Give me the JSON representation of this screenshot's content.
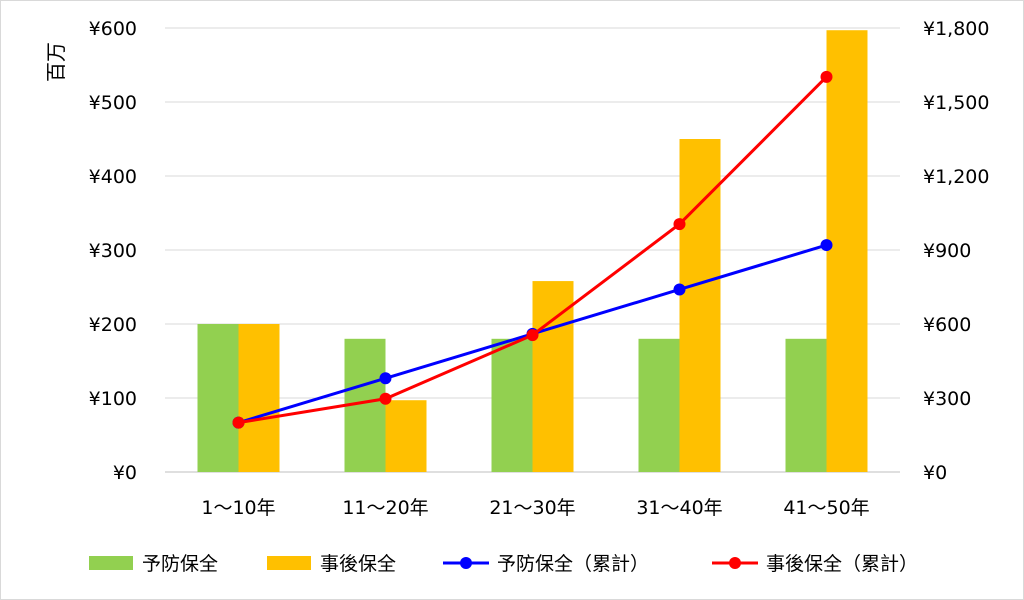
{
  "chart_data": {
    "type": "bar",
    "title": "",
    "y_unit_label": "百万",
    "categories": [
      "1～10年",
      "11～20年",
      "21～30年",
      "31～40年",
      "41～50年"
    ],
    "left_axis": {
      "range": [
        0,
        600
      ],
      "ticks": [
        "¥0",
        "¥100",
        "¥200",
        "¥300",
        "¥400",
        "¥500",
        "¥600"
      ]
    },
    "right_axis": {
      "range": [
        0,
        1800
      ],
      "ticks": [
        "¥0",
        "¥300",
        "¥600",
        "¥900",
        "¥1,200",
        "¥1,500",
        "¥1,800"
      ]
    },
    "grid": true,
    "legend_position": "bottom",
    "bar_series": [
      {
        "name": "予防保全",
        "color": "#92d050",
        "axis": "left",
        "values": [
          200,
          180,
          180,
          180,
          180
        ]
      },
      {
        "name": "事後保全",
        "color": "#ffc000",
        "axis": "left",
        "values": [
          200,
          97,
          258,
          450,
          597
        ]
      }
    ],
    "line_series": [
      {
        "name": "予防保全（累計）",
        "color": "#0000ff",
        "axis": "right",
        "values": [
          200,
          380,
          560,
          740,
          920
        ]
      },
      {
        "name": "事後保全（累計）",
        "color": "#ff0000",
        "axis": "right",
        "values": [
          200,
          297,
          555,
          1005,
          1602
        ]
      }
    ]
  }
}
